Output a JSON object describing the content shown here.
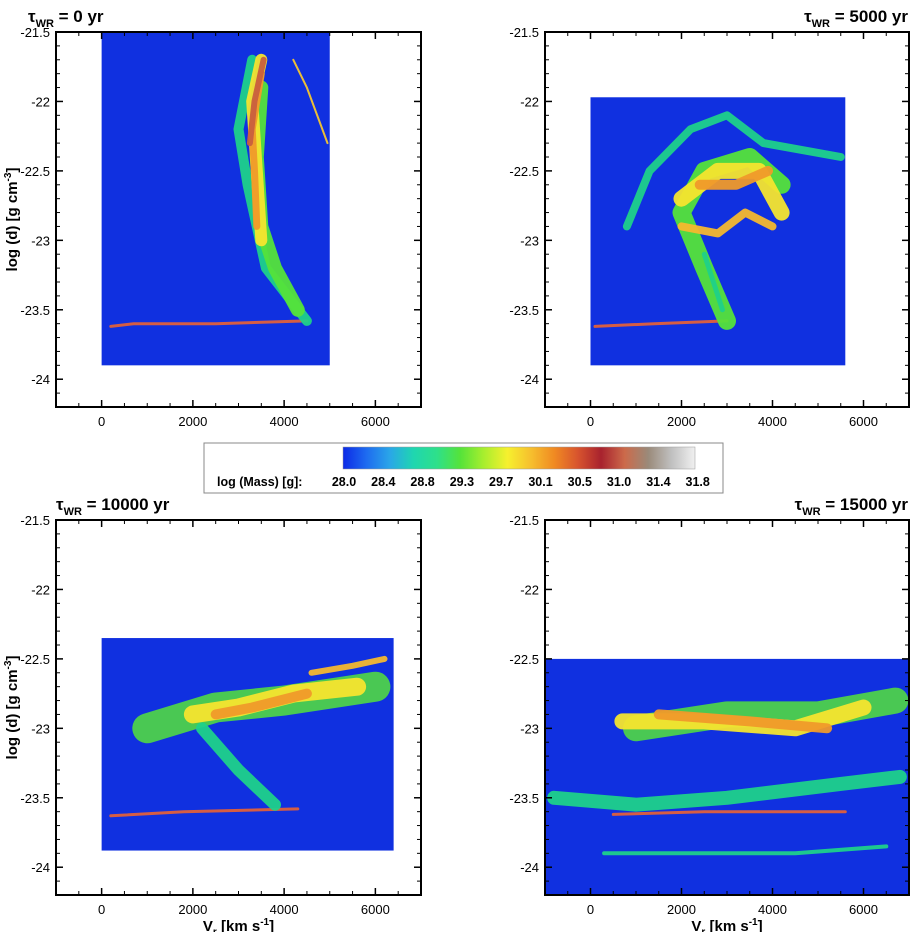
{
  "chart_data": [
    {
      "type": "heatmap",
      "title_main": "τ",
      "title_sub": "WR",
      "title_rest": " = 0 yr",
      "xlim": [
        -1000,
        7000
      ],
      "ylim": [
        -24.2,
        -21.5
      ],
      "xticks": [
        0,
        2000,
        4000,
        6000
      ],
      "yticks": [
        -21.5,
        -22,
        -22.5,
        -23,
        -23.5,
        -24
      ],
      "xtick_labels": [
        "0",
        "2000",
        "4000",
        "6000"
      ],
      "ytick_labels": [
        "-21.5",
        "-22",
        "-22.5",
        "-23",
        "-23.5",
        "-24"
      ],
      "domain": {
        "x": [
          0,
          5000
        ],
        "y": [
          -23.9,
          -21.5
        ]
      },
      "features": [
        {
          "shape": "line",
          "pts": [
            [
              200,
              -23.62
            ],
            [
              700,
              -23.6
            ],
            [
              2500,
              -23.6
            ],
            [
              4500,
              -23.58
            ]
          ],
          "w": 3,
          "color": "#e0603a"
        },
        {
          "shape": "line",
          "pts": [
            [
              4500,
              -23.58
            ],
            [
              3600,
              -23.2
            ],
            [
              3200,
              -22.6
            ],
            [
              3000,
              -22.2
            ],
            [
              3300,
              -21.7
            ]
          ],
          "w": 10,
          "color": "#1fd18a"
        },
        {
          "shape": "line",
          "pts": [
            [
              4300,
              -23.5
            ],
            [
              3800,
              -23.2
            ],
            [
              3500,
              -22.9
            ],
            [
              3400,
              -22.4
            ],
            [
              3500,
              -21.9
            ]
          ],
          "w": 14,
          "color": "#55e33a"
        },
        {
          "shape": "line",
          "pts": [
            [
              3500,
              -23.0
            ],
            [
              3400,
              -22.5
            ],
            [
              3300,
              -22.0
            ],
            [
              3500,
              -21.7
            ]
          ],
          "w": 12,
          "color": "#f6e52e"
        },
        {
          "shape": "line",
          "pts": [
            [
              3400,
              -22.9
            ],
            [
              3350,
              -22.5
            ],
            [
              3300,
              -22.2
            ],
            [
              3500,
              -21.8
            ]
          ],
          "w": 7,
          "color": "#f09a2a"
        },
        {
          "shape": "line",
          "pts": [
            [
              3250,
              -22.3
            ],
            [
              3350,
              -22.0
            ],
            [
              3550,
              -21.7
            ]
          ],
          "w": 6,
          "color": "#c8603e"
        },
        {
          "shape": "line",
          "pts": [
            [
              4200,
              -21.7
            ],
            [
              4500,
              -21.9
            ],
            [
              4950,
              -22.3
            ]
          ],
          "w": 2,
          "color": "#f7c62e"
        }
      ]
    },
    {
      "type": "heatmap",
      "title_main": "τ",
      "title_sub": "WR",
      "title_rest": " = 5000 yr",
      "xlim": [
        -1000,
        7000
      ],
      "ylim": [
        -24.2,
        -21.5
      ],
      "xticks": [
        0,
        2000,
        4000,
        6000
      ],
      "yticks": [
        -21.5,
        -22,
        -22.5,
        -23,
        -23.5,
        -24
      ],
      "xtick_labels": [
        "0",
        "2000",
        "4000",
        "6000"
      ],
      "ytick_labels": [
        "-21.5",
        "-22",
        "-22.5",
        "-23",
        "-23.5",
        "-24"
      ],
      "domain": {
        "x": [
          0,
          5600
        ],
        "y": [
          -23.9,
          -21.97
        ]
      },
      "features": [
        {
          "shape": "line",
          "pts": [
            [
              100,
              -23.62
            ],
            [
              1400,
              -23.6
            ],
            [
              3000,
              -23.58
            ]
          ],
          "w": 3,
          "color": "#e0603a"
        },
        {
          "shape": "line",
          "pts": [
            [
              800,
              -22.9
            ],
            [
              1300,
              -22.5
            ],
            [
              2200,
              -22.2
            ],
            [
              3000,
              -22.1
            ],
            [
              3800,
              -22.3
            ],
            [
              5500,
              -22.4
            ]
          ],
          "w": 8,
          "color": "#1fd18a"
        },
        {
          "shape": "line",
          "pts": [
            [
              3000,
              -23.58
            ],
            [
              2500,
              -23.2
            ],
            [
              2000,
              -22.8
            ],
            [
              2500,
              -22.5
            ],
            [
              3500,
              -22.4
            ],
            [
              4200,
              -22.6
            ]
          ],
          "w": 18,
          "color": "#55e33a"
        },
        {
          "shape": "line",
          "pts": [
            [
              2000,
              -22.7
            ],
            [
              2800,
              -22.5
            ],
            [
              3700,
              -22.5
            ],
            [
              4200,
              -22.8
            ]
          ],
          "w": 16,
          "color": "#f6e52e"
        },
        {
          "shape": "line",
          "pts": [
            [
              2400,
              -22.6
            ],
            [
              3200,
              -22.6
            ],
            [
              3900,
              -22.5
            ]
          ],
          "w": 10,
          "color": "#f09a2a"
        },
        {
          "shape": "line",
          "pts": [
            [
              2000,
              -22.9
            ],
            [
              2800,
              -22.95
            ],
            [
              3400,
              -22.8
            ],
            [
              4000,
              -22.9
            ]
          ],
          "w": 8,
          "color": "#f6b82e"
        },
        {
          "shape": "line",
          "pts": [
            [
              2500,
              -23.1
            ],
            [
              2700,
              -23.3
            ],
            [
              2900,
              -23.5
            ]
          ],
          "w": 5,
          "color": "#1fd18a"
        }
      ]
    },
    {
      "type": "heatmap",
      "title_main": "τ",
      "title_sub": "WR",
      "title_rest": " = 10000 yr",
      "xlim": [
        -1000,
        7000
      ],
      "ylim": [
        -24.2,
        -21.5
      ],
      "xticks": [
        0,
        2000,
        4000,
        6000
      ],
      "yticks": [
        -21.5,
        -22,
        -22.5,
        -23,
        -23.5,
        -24
      ],
      "xtick_labels": [
        "0",
        "2000",
        "4000",
        "6000"
      ],
      "ytick_labels": [
        "-21.5",
        "-22",
        "-22.5",
        "-23",
        "-23.5",
        "-24"
      ],
      "domain": {
        "x": [
          0,
          6400
        ],
        "y": [
          -23.88,
          -22.35
        ]
      },
      "features": [
        {
          "shape": "line",
          "pts": [
            [
              200,
              -23.63
            ],
            [
              1800,
              -23.6
            ],
            [
              4300,
              -23.58
            ]
          ],
          "w": 3,
          "color": "#e0603a"
        },
        {
          "shape": "line",
          "pts": [
            [
              1000,
              -23.0
            ],
            [
              2500,
              -22.85
            ],
            [
              4000,
              -22.8
            ],
            [
              6000,
              -22.7
            ]
          ],
          "w": 30,
          "color": "#55e33a"
        },
        {
          "shape": "line",
          "pts": [
            [
              2200,
              -23.0
            ],
            [
              3000,
              -23.3
            ],
            [
              3800,
              -23.55
            ]
          ],
          "w": 12,
          "color": "#1fd18a"
        },
        {
          "shape": "line",
          "pts": [
            [
              2000,
              -22.9
            ],
            [
              3000,
              -22.85
            ],
            [
              4200,
              -22.75
            ],
            [
              5600,
              -22.7
            ]
          ],
          "w": 18,
          "color": "#f6e52e"
        },
        {
          "shape": "line",
          "pts": [
            [
              2500,
              -22.9
            ],
            [
              3300,
              -22.85
            ],
            [
              4500,
              -22.75
            ]
          ],
          "w": 10,
          "color": "#f09a2a"
        },
        {
          "shape": "line",
          "pts": [
            [
              4600,
              -22.6
            ],
            [
              5500,
              -22.55
            ],
            [
              6200,
              -22.5
            ]
          ],
          "w": 6,
          "color": "#f6b82e"
        }
      ]
    },
    {
      "type": "heatmap",
      "title_main": "τ",
      "title_sub": "WR",
      "title_rest": " = 15000 yr",
      "xlim": [
        -1000,
        7000
      ],
      "ylim": [
        -24.2,
        -21.5
      ],
      "xticks": [
        0,
        2000,
        4000,
        6000
      ],
      "yticks": [
        -21.5,
        -22,
        -22.5,
        -23,
        -23.5,
        -24
      ],
      "xtick_labels": [
        "0",
        "2000",
        "4000",
        "6000"
      ],
      "ytick_labels": [
        "-21.5",
        "-22",
        "-22.5",
        "-23",
        "-23.5",
        "-24"
      ],
      "domain": {
        "x": [
          -1000,
          7000
        ],
        "y": [
          -24.2,
          -22.5
        ]
      },
      "features": [
        {
          "shape": "line",
          "pts": [
            [
              500,
              -23.62
            ],
            [
              2500,
              -23.6
            ],
            [
              5600,
              -23.6
            ]
          ],
          "w": 3,
          "color": "#e0603a"
        },
        {
          "shape": "line",
          "pts": [
            [
              -800,
              -23.5
            ],
            [
              1000,
              -23.55
            ],
            [
              3000,
              -23.5
            ],
            [
              5500,
              -23.4
            ],
            [
              6800,
              -23.35
            ]
          ],
          "w": 14,
          "color": "#1fd18a"
        },
        {
          "shape": "line",
          "pts": [
            [
              1000,
              -23.0
            ],
            [
              3000,
              -22.9
            ],
            [
              5000,
              -22.9
            ],
            [
              6700,
              -22.8
            ]
          ],
          "w": 26,
          "color": "#55e33a"
        },
        {
          "shape": "line",
          "pts": [
            [
              700,
              -22.95
            ],
            [
              2500,
              -22.95
            ],
            [
              4500,
              -23.0
            ],
            [
              6000,
              -22.85
            ]
          ],
          "w": 16,
          "color": "#f6e52e"
        },
        {
          "shape": "line",
          "pts": [
            [
              1500,
              -22.9
            ],
            [
              3500,
              -22.95
            ],
            [
              5200,
              -23.0
            ]
          ],
          "w": 10,
          "color": "#f09a2a"
        },
        {
          "shape": "line",
          "pts": [
            [
              300,
              -23.9
            ],
            [
              2000,
              -23.9
            ],
            [
              4500,
              -23.9
            ],
            [
              6500,
              -23.85
            ]
          ],
          "w": 4,
          "color": "#1fd18a"
        }
      ]
    }
  ],
  "axes": {
    "xlabel_main": "V",
    "xlabel_sub": "r",
    "xlabel_rest": " [km s",
    "xlabel_sup": "-1",
    "xlabel_end": "]",
    "ylabel_main": "log (d) [g cm",
    "ylabel_sup": "-3",
    "ylabel_end": "]"
  },
  "colorbar": {
    "label": "log (Mass) [g]:",
    "tick_labels": [
      "28.0",
      "28.4",
      "28.8",
      "29.3",
      "29.7",
      "30.1",
      "30.5",
      "31.0",
      "31.4",
      "31.8"
    ],
    "colors": [
      "#0c2ae6",
      "#1e6cf0",
      "#2aa6e8",
      "#1fd6b0",
      "#2ee08a",
      "#55e33a",
      "#a8ee2e",
      "#f6f02e",
      "#f6c02e",
      "#f08a22",
      "#d8542e",
      "#a8222e",
      "#cc6a4a",
      "#9a8a7a",
      "#c0c0c0",
      "#f0f0f0"
    ],
    "background": "#0c2ae6"
  },
  "style": {
    "field_color": "#1030e0"
  }
}
